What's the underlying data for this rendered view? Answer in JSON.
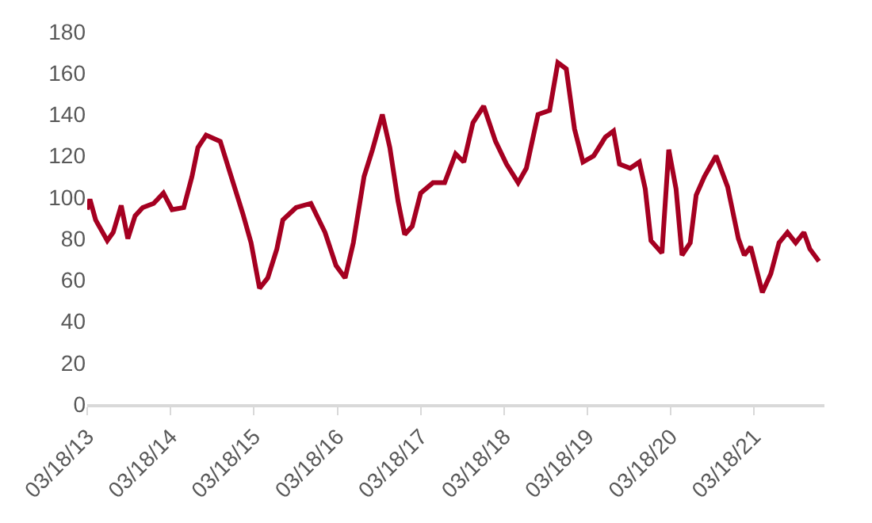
{
  "chart_data": {
    "type": "line",
    "x": [
      "2013-03-18",
      "2013-03-30",
      "2013-04-24",
      "2013-06-14",
      "2013-07-10",
      "2013-08-14",
      "2013-09-12",
      "2013-10-14",
      "2013-11-16",
      "2014-01-03",
      "2014-02-15",
      "2014-03-25",
      "2014-05-15",
      "2014-06-20",
      "2014-07-16",
      "2014-08-21",
      "2014-10-22",
      "2014-12-09",
      "2015-01-29",
      "2015-03-06",
      "2015-04-12",
      "2015-05-18",
      "2015-06-27",
      "2015-07-23",
      "2015-09-19",
      "2015-11-23",
      "2016-01-24",
      "2016-03-12",
      "2016-04-21",
      "2016-05-27",
      "2016-07-13",
      "2016-08-19",
      "2016-10-01",
      "2016-11-03",
      "2016-12-09",
      "2017-01-07",
      "2017-02-09",
      "2017-03-18",
      "2017-05-11",
      "2017-07-01",
      "2017-08-18",
      "2017-09-23",
      "2017-11-02",
      "2017-12-19",
      "2018-02-09",
      "2018-03-29",
      "2018-05-19",
      "2018-06-24",
      "2018-08-14",
      "2018-10-04",
      "2018-11-09",
      "2018-12-16",
      "2019-01-21",
      "2019-02-27",
      "2019-04-15",
      "2019-06-05",
      "2019-07-11",
      "2019-08-06",
      "2019-09-22",
      "2019-11-01",
      "2019-11-27",
      "2019-12-22",
      "2020-02-08",
      "2020-03-09",
      "2020-04-10",
      "2020-05-06",
      "2020-06-11",
      "2020-07-07",
      "2020-08-12",
      "2020-10-02",
      "2020-11-22",
      "2021-01-08",
      "2021-02-03",
      "2021-03-03",
      "2021-04-23",
      "2021-05-30",
      "2021-07-05",
      "2021-08-11",
      "2021-09-16",
      "2021-10-22",
      "2021-11-17",
      "2021-12-27"
    ],
    "series": [
      {
        "color": "#a50021",
        "values": [
          94,
          99,
          89,
          79,
          83,
          96,
          80,
          91,
          95,
          97,
          102,
          94,
          95,
          110,
          124,
          130,
          127,
          110,
          92,
          78,
          56,
          61,
          75,
          89,
          95,
          97,
          83,
          67,
          61,
          78,
          110,
          123,
          140,
          124,
          98,
          82,
          86,
          102,
          107,
          107,
          121,
          117,
          136,
          144,
          127,
          116,
          107,
          114,
          140,
          142,
          165,
          162,
          133,
          117,
          120,
          129,
          132,
          116,
          114,
          117,
          104,
          79,
          73,
          123,
          104,
          72,
          78,
          101,
          110,
          120,
          105,
          80,
          72,
          76,
          54,
          63,
          78,
          83,
          78,
          83,
          75,
          69
        ]
      }
    ],
    "xlim": [
      "2013-03-18",
      "2022-01-20"
    ],
    "xticks": [
      {
        "value": "2013-03-18",
        "label": "03/18/13"
      },
      {
        "value": "2014-03-18",
        "label": "03/18/14"
      },
      {
        "value": "2015-03-18",
        "label": "03/18/15"
      },
      {
        "value": "2016-03-18",
        "label": "03/18/16"
      },
      {
        "value": "2017-03-18",
        "label": "03/18/17"
      },
      {
        "value": "2018-03-18",
        "label": "03/18/18"
      },
      {
        "value": "2019-03-18",
        "label": "03/18/19"
      },
      {
        "value": "2020-03-18",
        "label": "03/18/20"
      },
      {
        "value": "2021-03-18",
        "label": "03/18/21"
      }
    ],
    "ylim": [
      0,
      180
    ],
    "yticks": [
      0,
      20,
      40,
      60,
      80,
      100,
      120,
      140,
      160,
      180
    ],
    "marker": "none",
    "line_style": "solid"
  }
}
